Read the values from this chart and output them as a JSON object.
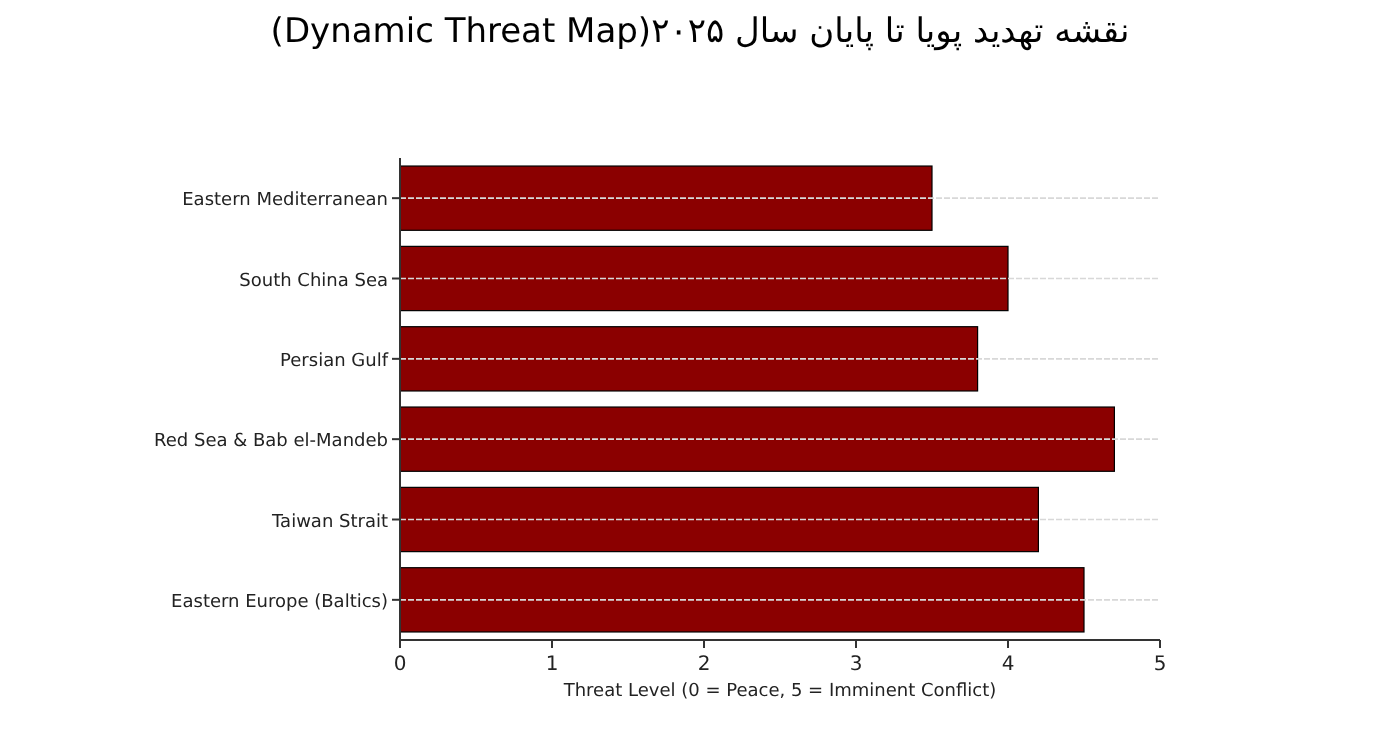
{
  "chart_data": {
    "type": "bar",
    "orientation": "horizontal",
    "title": "نقشه تهدید پویا تا پایان سال ۲۰۲۵(Dynamic Threat Map)",
    "xlabel": "Threat Level (0 = Peace, 5 = Imminent Conflict)",
    "categories": [
      "Eastern Mediterranean",
      "South China Sea",
      "Persian Gulf",
      "Red Sea & Bab el-Mandeb",
      "Taiwan Strait",
      "Eastern Europe (Baltics)"
    ],
    "values": [
      3.5,
      4.0,
      3.8,
      4.7,
      4.2,
      4.5
    ],
    "color": "#8b0000",
    "xlim": [
      0,
      5
    ],
    "xticks": [
      0,
      1,
      2,
      3,
      4,
      5
    ],
    "grid": "y"
  }
}
